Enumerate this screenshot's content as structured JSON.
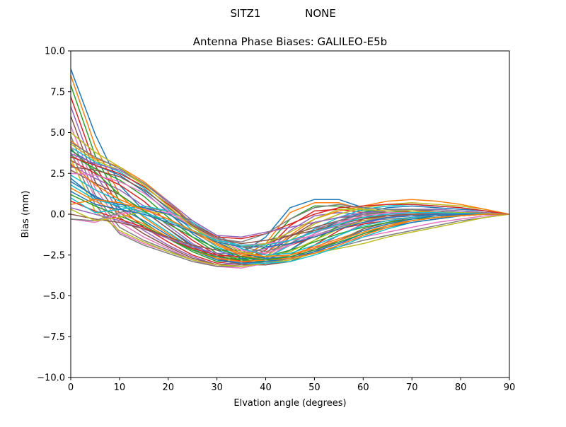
{
  "chart_data": {
    "type": "line",
    "suptitle_station": "SITZ1",
    "suptitle_radome": "NONE",
    "title": "Antenna Phase Biases: GALILEO-E5b",
    "xlabel": "Elvation angle (degrees)",
    "ylabel": "Bias (mm)",
    "xlim": [
      0,
      90
    ],
    "ylim": [
      -10,
      10
    ],
    "x_ticks": [
      "0",
      "10",
      "20",
      "30",
      "40",
      "50",
      "60",
      "70",
      "80",
      "90"
    ],
    "y_ticks": [
      "−10.0",
      "−7.5",
      "−5.0",
      "−2.5",
      "0.0",
      "2.5",
      "5.0",
      "7.5",
      "10.0"
    ],
    "grid": false,
    "legend": "none",
    "x": [
      0,
      5,
      10,
      15,
      20,
      25,
      30,
      35,
      40,
      45,
      50,
      55,
      60,
      65,
      70,
      75,
      80,
      85,
      90
    ],
    "colors": [
      "#1f77b4",
      "#ff7f0e",
      "#2ca02c",
      "#d62728",
      "#9467bd",
      "#8c564b",
      "#e377c2",
      "#7f7f7f",
      "#bcbd22",
      "#17becf"
    ],
    "series": [
      {
        "values": [
          8.9,
          4.9,
          1.8,
          0.2,
          -0.9,
          -1.9,
          -2.6,
          -2.4,
          -1.4,
          0.4,
          0.9,
          0.9,
          0.4,
          0.3,
          0.3,
          0.2,
          0.1,
          0.05,
          0
        ]
      },
      {
        "values": [
          8.5,
          4.2,
          1.2,
          -0.2,
          -1.2,
          -2.1,
          -2.8,
          -2.6,
          -1.8,
          0.1,
          0.7,
          0.7,
          0.3,
          0.2,
          0.2,
          0.1,
          0.1,
          0.05,
          0
        ]
      },
      {
        "values": [
          7.9,
          3.6,
          0.8,
          -0.5,
          -1.5,
          -2.3,
          -2.9,
          -2.7,
          -2.0,
          -0.3,
          0.5,
          0.5,
          0.2,
          0.2,
          0.1,
          0.1,
          0.05,
          0.02,
          0
        ]
      },
      {
        "values": [
          7.2,
          3.0,
          0.4,
          -0.8,
          -1.7,
          -2.5,
          -3.0,
          -2.8,
          -2.2,
          -0.7,
          0.2,
          0.3,
          0.1,
          0.1,
          0.1,
          0.05,
          0.03,
          0.01,
          0
        ]
      },
      {
        "values": [
          6.6,
          2.5,
          0.1,
          -1.0,
          -1.9,
          -2.6,
          -3.1,
          -2.9,
          -2.4,
          -1.0,
          -0.1,
          0.1,
          0.0,
          0.0,
          0.0,
          0.0,
          0.0,
          0.0,
          0
        ]
      },
      {
        "values": [
          6.0,
          2.0,
          -0.2,
          -1.2,
          -2.0,
          -2.7,
          -3.1,
          -3.0,
          -2.6,
          -1.4,
          -0.5,
          -0.2,
          -0.1,
          -0.1,
          -0.1,
          0.0,
          0.0,
          0.0,
          0
        ]
      },
      {
        "values": [
          5.4,
          1.6,
          -0.5,
          -1.4,
          -2.1,
          -2.8,
          -3.2,
          -3.0,
          -2.7,
          -1.8,
          -0.9,
          -0.5,
          -0.2,
          -0.2,
          -0.1,
          -0.1,
          -0.05,
          0.0,
          0
        ]
      },
      {
        "values": [
          4.8,
          1.2,
          -0.8,
          -1.6,
          -2.2,
          -2.8,
          -3.2,
          -3.1,
          -2.8,
          -2.2,
          -1.3,
          -0.8,
          -0.4,
          -0.3,
          -0.2,
          -0.1,
          -0.05,
          0.0,
          0
        ]
      },
      {
        "values": [
          4.3,
          3.3,
          2.7,
          1.8,
          0.5,
          -0.8,
          -1.8,
          -2.5,
          -2.6,
          -1.6,
          -0.6,
          0.0,
          0.4,
          0.6,
          0.7,
          0.6,
          0.5,
          0.3,
          0
        ]
      },
      {
        "values": [
          4.1,
          3.2,
          2.6,
          1.6,
          0.3,
          -1.0,
          -2.0,
          -2.6,
          -2.7,
          -1.9,
          -0.9,
          -0.2,
          0.3,
          0.5,
          0.6,
          0.5,
          0.4,
          0.2,
          0
        ]
      },
      {
        "values": [
          3.9,
          3.0,
          2.4,
          1.4,
          0.1,
          -1.2,
          -2.2,
          -2.7,
          -2.8,
          -2.2,
          -1.2,
          -0.4,
          0.1,
          0.4,
          0.5,
          0.4,
          0.3,
          0.2,
          0
        ]
      },
      {
        "values": [
          4.5,
          3.4,
          2.9,
          2.0,
          0.8,
          -0.6,
          -1.6,
          -2.3,
          -2.4,
          -1.3,
          -0.3,
          0.2,
          0.5,
          0.8,
          0.9,
          0.8,
          0.6,
          0.3,
          0
        ]
      },
      {
        "values": [
          3.6,
          2.8,
          2.1,
          1.1,
          -0.2,
          -1.4,
          -2.4,
          -2.8,
          -2.9,
          -2.5,
          -1.6,
          -0.7,
          -0.1,
          0.2,
          0.3,
          0.3,
          0.2,
          0.1,
          0
        ]
      },
      {
        "values": [
          3.3,
          2.5,
          1.8,
          0.8,
          -0.5,
          -1.6,
          -2.5,
          -2.9,
          -3.0,
          -2.7,
          -1.9,
          -1.0,
          -0.3,
          0.0,
          0.2,
          0.2,
          0.1,
          0.1,
          0
        ]
      },
      {
        "values": [
          3.0,
          2.2,
          1.5,
          0.5,
          -0.7,
          -1.8,
          -2.6,
          -3.0,
          -3.1,
          -2.8,
          -2.1,
          -1.3,
          -0.6,
          -0.2,
          0.0,
          0.1,
          0.1,
          0.05,
          0
        ]
      },
      {
        "values": [
          2.7,
          1.9,
          1.2,
          0.2,
          -0.9,
          -2.0,
          -2.7,
          -3.1,
          -3.1,
          -2.9,
          -2.3,
          -1.6,
          -0.9,
          -0.5,
          -0.2,
          0.0,
          0.0,
          0.0,
          0
        ]
      },
      {
        "values": [
          4.2,
          1.0,
          -1.1,
          -1.8,
          -2.3,
          -2.8,
          -3.2,
          -3.3,
          -3.0,
          -2.6,
          -2.2,
          -1.8,
          -1.4,
          -1.1,
          -0.8,
          -0.5,
          -0.3,
          -0.1,
          0
        ]
      },
      {
        "values": [
          3.8,
          0.6,
          -1.2,
          -1.9,
          -2.4,
          -2.9,
          -3.2,
          -3.2,
          -3.0,
          -2.7,
          -2.3,
          -2.0,
          -1.6,
          -1.3,
          -1.0,
          -0.7,
          -0.4,
          -0.2,
          0
        ]
      },
      {
        "values": [
          3.4,
          0.2,
          -1.0,
          -1.7,
          -2.3,
          -2.8,
          -3.1,
          -3.2,
          -3.0,
          -2.8,
          -2.4,
          -2.1,
          -1.8,
          -1.4,
          -1.1,
          -0.8,
          -0.5,
          -0.2,
          0
        ]
      },
      {
        "values": [
          2.4,
          1.5,
          0.8,
          -0.1,
          -1.1,
          -2.1,
          -2.8,
          -3.0,
          -3.0,
          -2.9,
          -2.5,
          -2.0,
          -1.4,
          -0.9,
          -0.5,
          -0.3,
          -0.1,
          0.0,
          0
        ]
      },
      {
        "values": [
          2.0,
          1.1,
          0.4,
          -0.4,
          -1.3,
          -2.2,
          -2.8,
          -3.0,
          -2.9,
          -2.7,
          -2.3,
          -1.8,
          -1.2,
          -0.8,
          -0.5,
          -0.3,
          -0.1,
          0.0,
          0
        ]
      },
      {
        "values": [
          1.6,
          0.8,
          0.1,
          -0.6,
          -1.4,
          -2.2,
          -2.7,
          -2.9,
          -2.8,
          -2.5,
          -2.0,
          -1.5,
          -1.0,
          -0.6,
          -0.4,
          -0.2,
          -0.1,
          0.0,
          0
        ]
      },
      {
        "values": [
          1.2,
          0.5,
          -0.1,
          -0.7,
          -1.5,
          -2.2,
          -2.6,
          -2.8,
          -2.6,
          -2.2,
          -1.7,
          -1.2,
          -0.8,
          -0.5,
          -0.3,
          -0.2,
          -0.1,
          0.0,
          0
        ]
      },
      {
        "values": [
          0.8,
          0.2,
          -0.3,
          -0.8,
          -1.5,
          -2.1,
          -2.5,
          -2.6,
          -2.4,
          -1.9,
          -1.4,
          -0.9,
          -0.6,
          -0.4,
          -0.2,
          -0.1,
          0.0,
          0.0,
          0
        ]
      },
      {
        "values": [
          0.4,
          0.0,
          -0.4,
          -0.9,
          -1.5,
          -2.0,
          -2.4,
          -2.4,
          -2.1,
          -1.6,
          -1.1,
          -0.7,
          -0.4,
          -0.2,
          -0.1,
          0.0,
          0.0,
          0.0,
          0
        ]
      },
      {
        "values": [
          0.0,
          -0.3,
          -0.5,
          -0.9,
          -1.4,
          -1.9,
          -2.2,
          -2.2,
          -1.8,
          -1.3,
          -0.8,
          -0.4,
          -0.2,
          -0.1,
          0.0,
          0.0,
          0.0,
          0.0,
          0
        ]
      },
      {
        "values": [
          -0.3,
          -0.5,
          0.0,
          0.3,
          0.1,
          -0.6,
          -1.5,
          -2.2,
          -2.4,
          -1.9,
          -1.2,
          -0.5,
          -0.1,
          0.1,
          0.1,
          0.1,
          0.05,
          0.02,
          0
        ]
      },
      {
        "values": [
          -0.3,
          -0.4,
          0.1,
          0.4,
          0.2,
          -0.4,
          -1.3,
          -2.0,
          -2.3,
          -1.8,
          -1.0,
          -0.4,
          0.0,
          0.2,
          0.2,
          0.1,
          0.1,
          0.05,
          0
        ]
      },
      {
        "values": [
          0.3,
          -0.4,
          -0.2,
          0.2,
          0.0,
          -0.7,
          -1.6,
          -2.3,
          -2.6,
          -2.3,
          -1.6,
          -0.9,
          -0.4,
          -0.1,
          0.0,
          0.0,
          0.0,
          0.0,
          0
        ]
      },
      {
        "values": [
          1.0,
          0.1,
          0.3,
          0.5,
          0.2,
          -0.5,
          -1.4,
          -2.1,
          -2.5,
          -2.4,
          -1.9,
          -1.3,
          -0.7,
          -0.4,
          -0.2,
          -0.1,
          0.0,
          0.0,
          0
        ]
      },
      {
        "values": [
          2.2,
          1.0,
          0.6,
          0.4,
          0.0,
          -0.8,
          -1.7,
          -2.4,
          -2.7,
          -2.6,
          -2.2,
          -1.6,
          -1.0,
          -0.6,
          -0.3,
          -0.1,
          0.0,
          0.0,
          0
        ]
      },
      {
        "values": [
          3.1,
          1.8,
          0.9,
          0.3,
          -0.3,
          -1.1,
          -1.9,
          -2.5,
          -2.8,
          -2.7,
          -2.4,
          -1.9,
          -1.3,
          -0.8,
          -0.4,
          -0.2,
          -0.1,
          0.0,
          0
        ]
      },
      {
        "values": [
          4.0,
          2.6,
          1.2,
          0.2,
          -0.6,
          -1.4,
          -2.1,
          -2.6,
          -2.8,
          -2.6,
          -2.2,
          -1.7,
          -1.2,
          -0.7,
          -0.4,
          -0.2,
          -0.1,
          0.0,
          0
        ]
      },
      {
        "values": [
          3.5,
          3.0,
          2.5,
          1.7,
          0.6,
          -0.6,
          -1.4,
          -1.5,
          -1.2,
          -0.6,
          0.0,
          0.4,
          0.5,
          0.6,
          0.6,
          0.5,
          0.4,
          0.2,
          0
        ]
      },
      {
        "values": [
          3.7,
          3.1,
          2.7,
          1.9,
          0.8,
          -0.4,
          -1.3,
          -1.4,
          -1.1,
          -0.8,
          -0.5,
          -0.2,
          0.1,
          0.2,
          0.3,
          0.3,
          0.2,
          0.1,
          0
        ]
      },
      {
        "values": [
          2.9,
          2.7,
          2.3,
          1.5,
          0.4,
          -0.7,
          -1.5,
          -1.8,
          -1.6,
          -1.3,
          -1.0,
          -0.6,
          -0.3,
          -0.1,
          0.0,
          0.0,
          0.0,
          0.0,
          0
        ]
      },
      {
        "values": [
          2.5,
          2.4,
          2.0,
          1.3,
          0.2,
          -0.8,
          -1.6,
          -1.9,
          -1.8,
          -1.6,
          -1.3,
          -0.9,
          -0.5,
          -0.2,
          -0.1,
          0.0,
          0.0,
          0.0,
          0
        ]
      },
      {
        "values": [
          4.4,
          3.5,
          2.8,
          1.9,
          0.7,
          -0.6,
          -1.5,
          -1.7,
          -1.2,
          -0.3,
          0.4,
          0.6,
          0.4,
          0.3,
          0.3,
          0.2,
          0.1,
          0.05,
          0
        ]
      },
      {
        "values": [
          5.0,
          3.8,
          2.9,
          1.8,
          0.5,
          -0.8,
          -1.7,
          -2.0,
          -1.8,
          -1.1,
          -0.3,
          0.3,
          0.3,
          0.2,
          0.2,
          0.1,
          0.1,
          0.05,
          0
        ]
      },
      {
        "values": [
          1.8,
          0.9,
          0.5,
          0.1,
          -0.4,
          -1.0,
          -1.6,
          -1.9,
          -1.9,
          -1.6,
          -1.1,
          -0.6,
          -0.2,
          0.0,
          0.1,
          0.1,
          0.05,
          0.02,
          0
        ]
      },
      {
        "values": [
          1.4,
          0.6,
          0.3,
          0.0,
          -0.5,
          -1.1,
          -1.7,
          -2.0,
          -2.0,
          -1.8,
          -1.4,
          -0.9,
          -0.5,
          -0.2,
          -0.1,
          0.0,
          0.0,
          0.0,
          0
        ]
      },
      {
        "values": [
          0.6,
          0.9,
          0.7,
          0.3,
          -0.3,
          -1.0,
          -1.8,
          -2.4,
          -2.6,
          -2.5,
          -2.1,
          -1.6,
          -1.1,
          -0.7,
          -0.4,
          -0.2,
          -0.1,
          0.0,
          0
        ]
      }
    ]
  }
}
